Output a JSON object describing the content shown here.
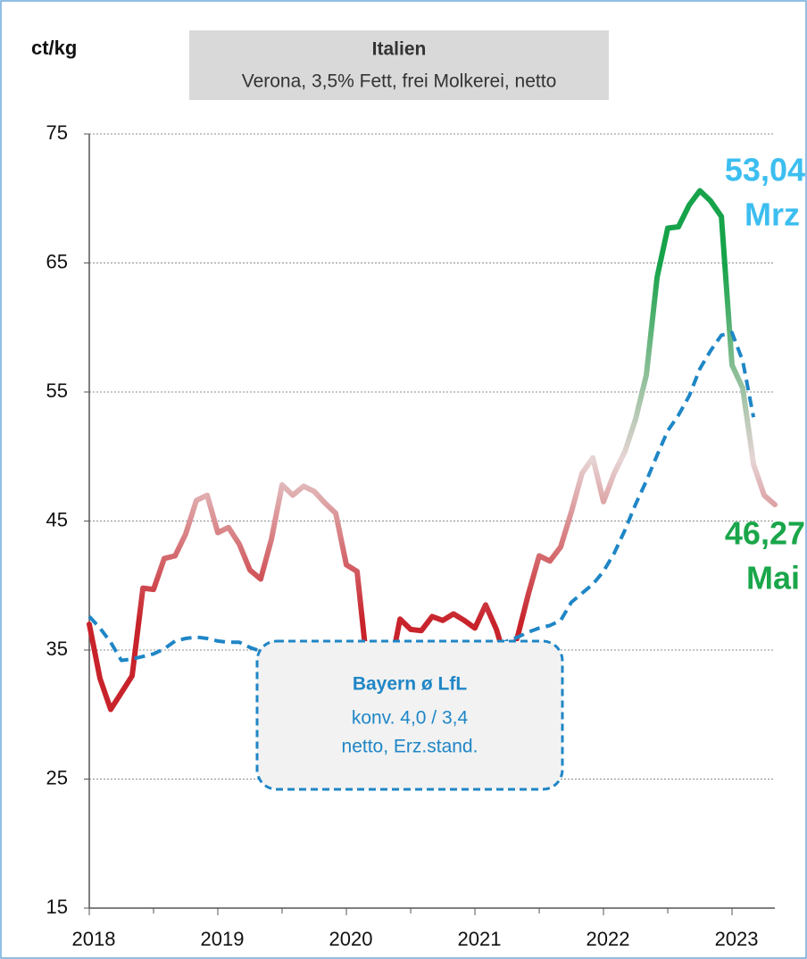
{
  "chart_data": {
    "type": "line",
    "unit_label": "ct/kg",
    "title": "Italien",
    "subtitle": "Verona, 3,5% Fett, frei Molkerei, netto",
    "xlim": [
      2018,
      2023.333
    ],
    "xticks": [
      2018,
      2019,
      2020,
      2021,
      2022,
      2023
    ],
    "xminorticks": [
      2018.5,
      2019.5,
      2020.5,
      2021.5,
      2022.5
    ],
    "ylim": [
      15,
      75
    ],
    "yticks": [
      15,
      25,
      35,
      45,
      55,
      65,
      75
    ],
    "grid": true,
    "x": [
      2018,
      2018.083,
      2018.167,
      2018.25,
      2018.333,
      2018.417,
      2018.5,
      2018.583,
      2018.667,
      2018.75,
      2018.833,
      2018.917,
      2019,
      2019.083,
      2019.167,
      2019.25,
      2019.333,
      2019.417,
      2019.5,
      2019.583,
      2019.667,
      2019.75,
      2019.833,
      2019.917,
      2020,
      2020.083,
      2020.167,
      2020.25,
      2020.333,
      2020.417,
      2020.5,
      2020.583,
      2020.667,
      2020.75,
      2020.833,
      2020.917,
      2021,
      2021.083,
      2021.167,
      2021.25,
      2021.333,
      2021.417,
      2021.5,
      2021.583,
      2021.667,
      2021.75,
      2021.833,
      2021.917,
      2022,
      2022.083,
      2022.167,
      2022.25,
      2022.333,
      2022.417,
      2022.5,
      2022.583,
      2022.667,
      2022.75,
      2022.833,
      2022.917,
      2023,
      2023.083,
      2023.167,
      2023.25,
      2023.333
    ],
    "series": [
      {
        "gradient_colors": {
          "high": "#17a34a",
          "mid": "#e6d4d4",
          "low": "#c8232b"
        },
        "values": [
          37.0,
          32.8,
          30.4,
          31.7,
          33.0,
          39.8,
          39.7,
          42.1,
          42.3,
          44.0,
          46.6,
          47.0,
          44.1,
          44.5,
          43.2,
          41.2,
          40.5,
          43.6,
          47.8,
          47.0,
          47.7,
          47.3,
          46.4,
          45.6,
          41.6,
          41.1,
          33.3,
          32.2,
          33.1,
          37.4,
          36.6,
          36.5,
          37.6,
          37.3,
          37.8,
          37.3,
          36.7,
          38.5,
          36.6,
          33.8,
          36.1,
          39.4,
          42.3,
          41.9,
          43.0,
          45.7,
          48.7,
          49.9,
          46.5,
          48.7,
          50.4,
          52.9,
          56.3,
          63.9,
          67.7,
          67.8,
          69.5,
          70.6,
          69.8,
          68.6,
          57.1,
          55.3,
          49.4,
          47.0,
          46.27
        ],
        "value_labels": [
          null,
          null,
          null,
          null,
          null,
          null,
          null,
          null,
          null,
          null,
          null,
          null,
          null,
          null,
          null,
          null,
          null,
          null,
          null,
          null,
          null,
          null,
          null,
          null,
          null,
          null,
          null,
          null,
          null,
          null,
          null,
          null,
          null,
          null,
          null,
          null,
          null,
          null,
          null,
          null,
          null,
          null,
          null,
          null,
          null,
          null,
          null,
          null,
          null,
          null,
          null,
          null,
          null,
          null,
          null,
          null,
          null,
          null,
          null,
          null,
          null,
          null,
          null,
          null,
          "46,27"
        ],
        "end_month": "Mai",
        "label_color": "#1aa64a"
      },
      {
        "name": "Bayern ø LfL",
        "note": [
          "konv. 4,0 / 3,4",
          "netto, Erz.stand."
        ],
        "color": "#1f86c6",
        "dashed": true,
        "values": [
          37.6,
          36.7,
          35.6,
          34.2,
          34.3,
          34.5,
          34.7,
          35.1,
          35.7,
          35.9,
          36.0,
          35.9,
          35.7,
          35.6,
          35.6,
          35.2,
          34.9,
          34.5,
          34.2,
          34.0,
          33.8,
          34.0,
          34.0,
          34.2,
          34.3,
          34.5,
          34.7,
          34.2,
          33.1,
          32.9,
          33.1,
          33.5,
          33.7,
          34.0,
          34.0,
          34.2,
          34.5,
          34.9,
          35.2,
          35.7,
          36.0,
          36.4,
          36.7,
          36.9,
          37.3,
          38.7,
          39.4,
          40.1,
          41.1,
          42.5,
          44.3,
          46.3,
          48.1,
          50.1,
          52.0,
          53.2,
          54.7,
          56.8,
          58.2,
          59.4,
          59.6,
          57.4,
          53.04,
          null,
          null
        ],
        "value_labels": [
          null,
          null,
          null,
          null,
          null,
          null,
          null,
          null,
          null,
          null,
          null,
          null,
          null,
          null,
          null,
          null,
          null,
          null,
          null,
          null,
          null,
          null,
          null,
          null,
          null,
          null,
          null,
          null,
          null,
          null,
          null,
          null,
          null,
          null,
          null,
          null,
          null,
          null,
          null,
          null,
          null,
          null,
          null,
          null,
          null,
          null,
          null,
          null,
          null,
          null,
          null,
          null,
          null,
          null,
          null,
          null,
          null,
          null,
          null,
          null,
          null,
          null,
          "53,04",
          null,
          null
        ],
        "end_month": "Mrz",
        "label_color": "#3cbef0"
      }
    ]
  }
}
